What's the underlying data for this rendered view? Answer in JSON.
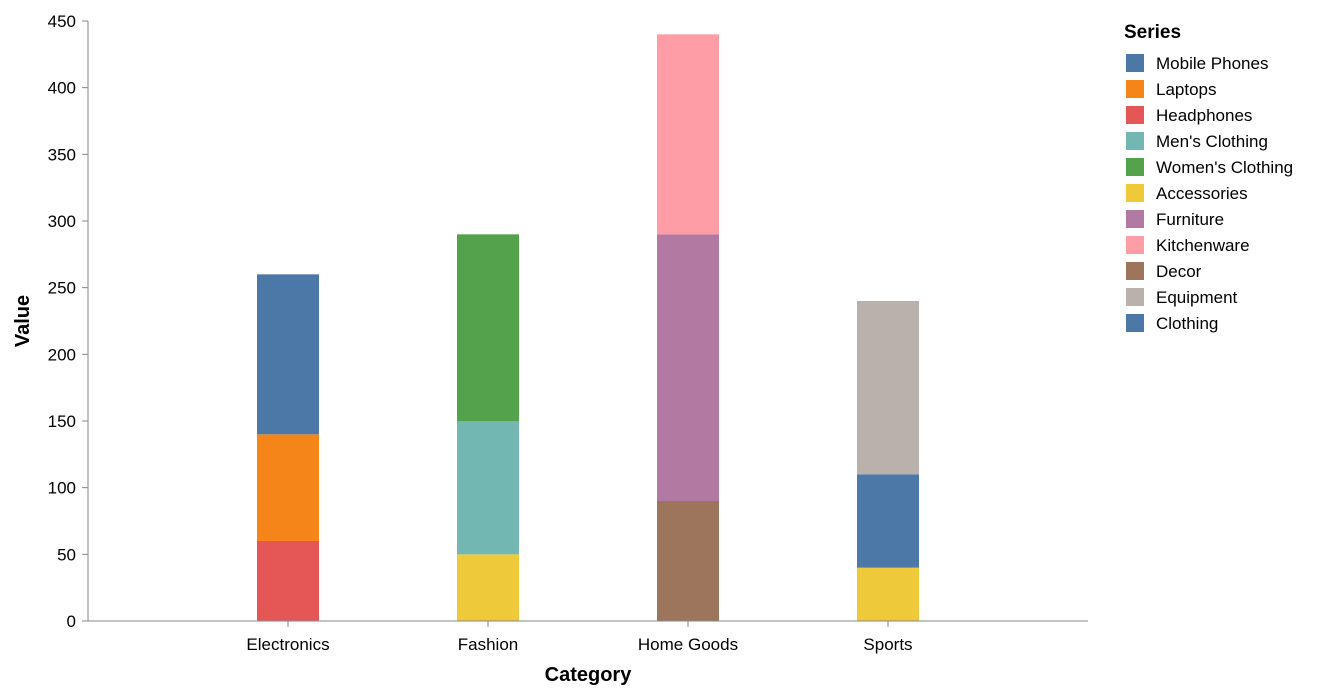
{
  "chart_data": {
    "type": "bar",
    "stacked": true,
    "xlabel": "Category",
    "ylabel": "Value",
    "ylim": [
      0,
      450
    ],
    "y_ticks": [
      0,
      50,
      100,
      150,
      200,
      250,
      300,
      350,
      400,
      450
    ],
    "grid": false,
    "legend_position": "right",
    "categories": [
      "Electronics",
      "Fashion",
      "Home Goods",
      "Sports"
    ],
    "legend": {
      "title": "Series",
      "entries": [
        {
          "name": "Mobile Phones",
          "color": "#4c78a8"
        },
        {
          "name": "Laptops",
          "color": "#f58518"
        },
        {
          "name": "Headphones",
          "color": "#e45756"
        },
        {
          "name": "Men's Clothing",
          "color": "#72b7b2"
        },
        {
          "name": "Women's Clothing",
          "color": "#54a24b"
        },
        {
          "name": "Accessories",
          "color": "#eeca3b"
        },
        {
          "name": "Furniture",
          "color": "#b279a2"
        },
        {
          "name": "Kitchenware",
          "color": "#ff9da6"
        },
        {
          "name": "Decor",
          "color": "#9d755d"
        },
        {
          "name": "Equipment",
          "color": "#bab0ac"
        },
        {
          "name": "Clothing",
          "color": "#4c78a8"
        }
      ]
    },
    "series": [
      {
        "name": "Headphones",
        "category": "Electronics",
        "value": 60
      },
      {
        "name": "Laptops",
        "category": "Electronics",
        "value": 80
      },
      {
        "name": "Mobile Phones",
        "category": "Electronics",
        "value": 120
      },
      {
        "name": "Accessories",
        "category": "Fashion",
        "value": 50
      },
      {
        "name": "Men's Clothing",
        "category": "Fashion",
        "value": 100
      },
      {
        "name": "Women's Clothing",
        "category": "Fashion",
        "value": 140
      },
      {
        "name": "Decor",
        "category": "Home Goods",
        "value": 90
      },
      {
        "name": "Furniture",
        "category": "Home Goods",
        "value": 200
      },
      {
        "name": "Kitchenware",
        "category": "Home Goods",
        "value": 150
      },
      {
        "name": "Accessories",
        "category": "Sports",
        "value": 40
      },
      {
        "name": "Clothing",
        "category": "Sports",
        "value": 70
      },
      {
        "name": "Equipment",
        "category": "Sports",
        "value": 130
      }
    ]
  }
}
